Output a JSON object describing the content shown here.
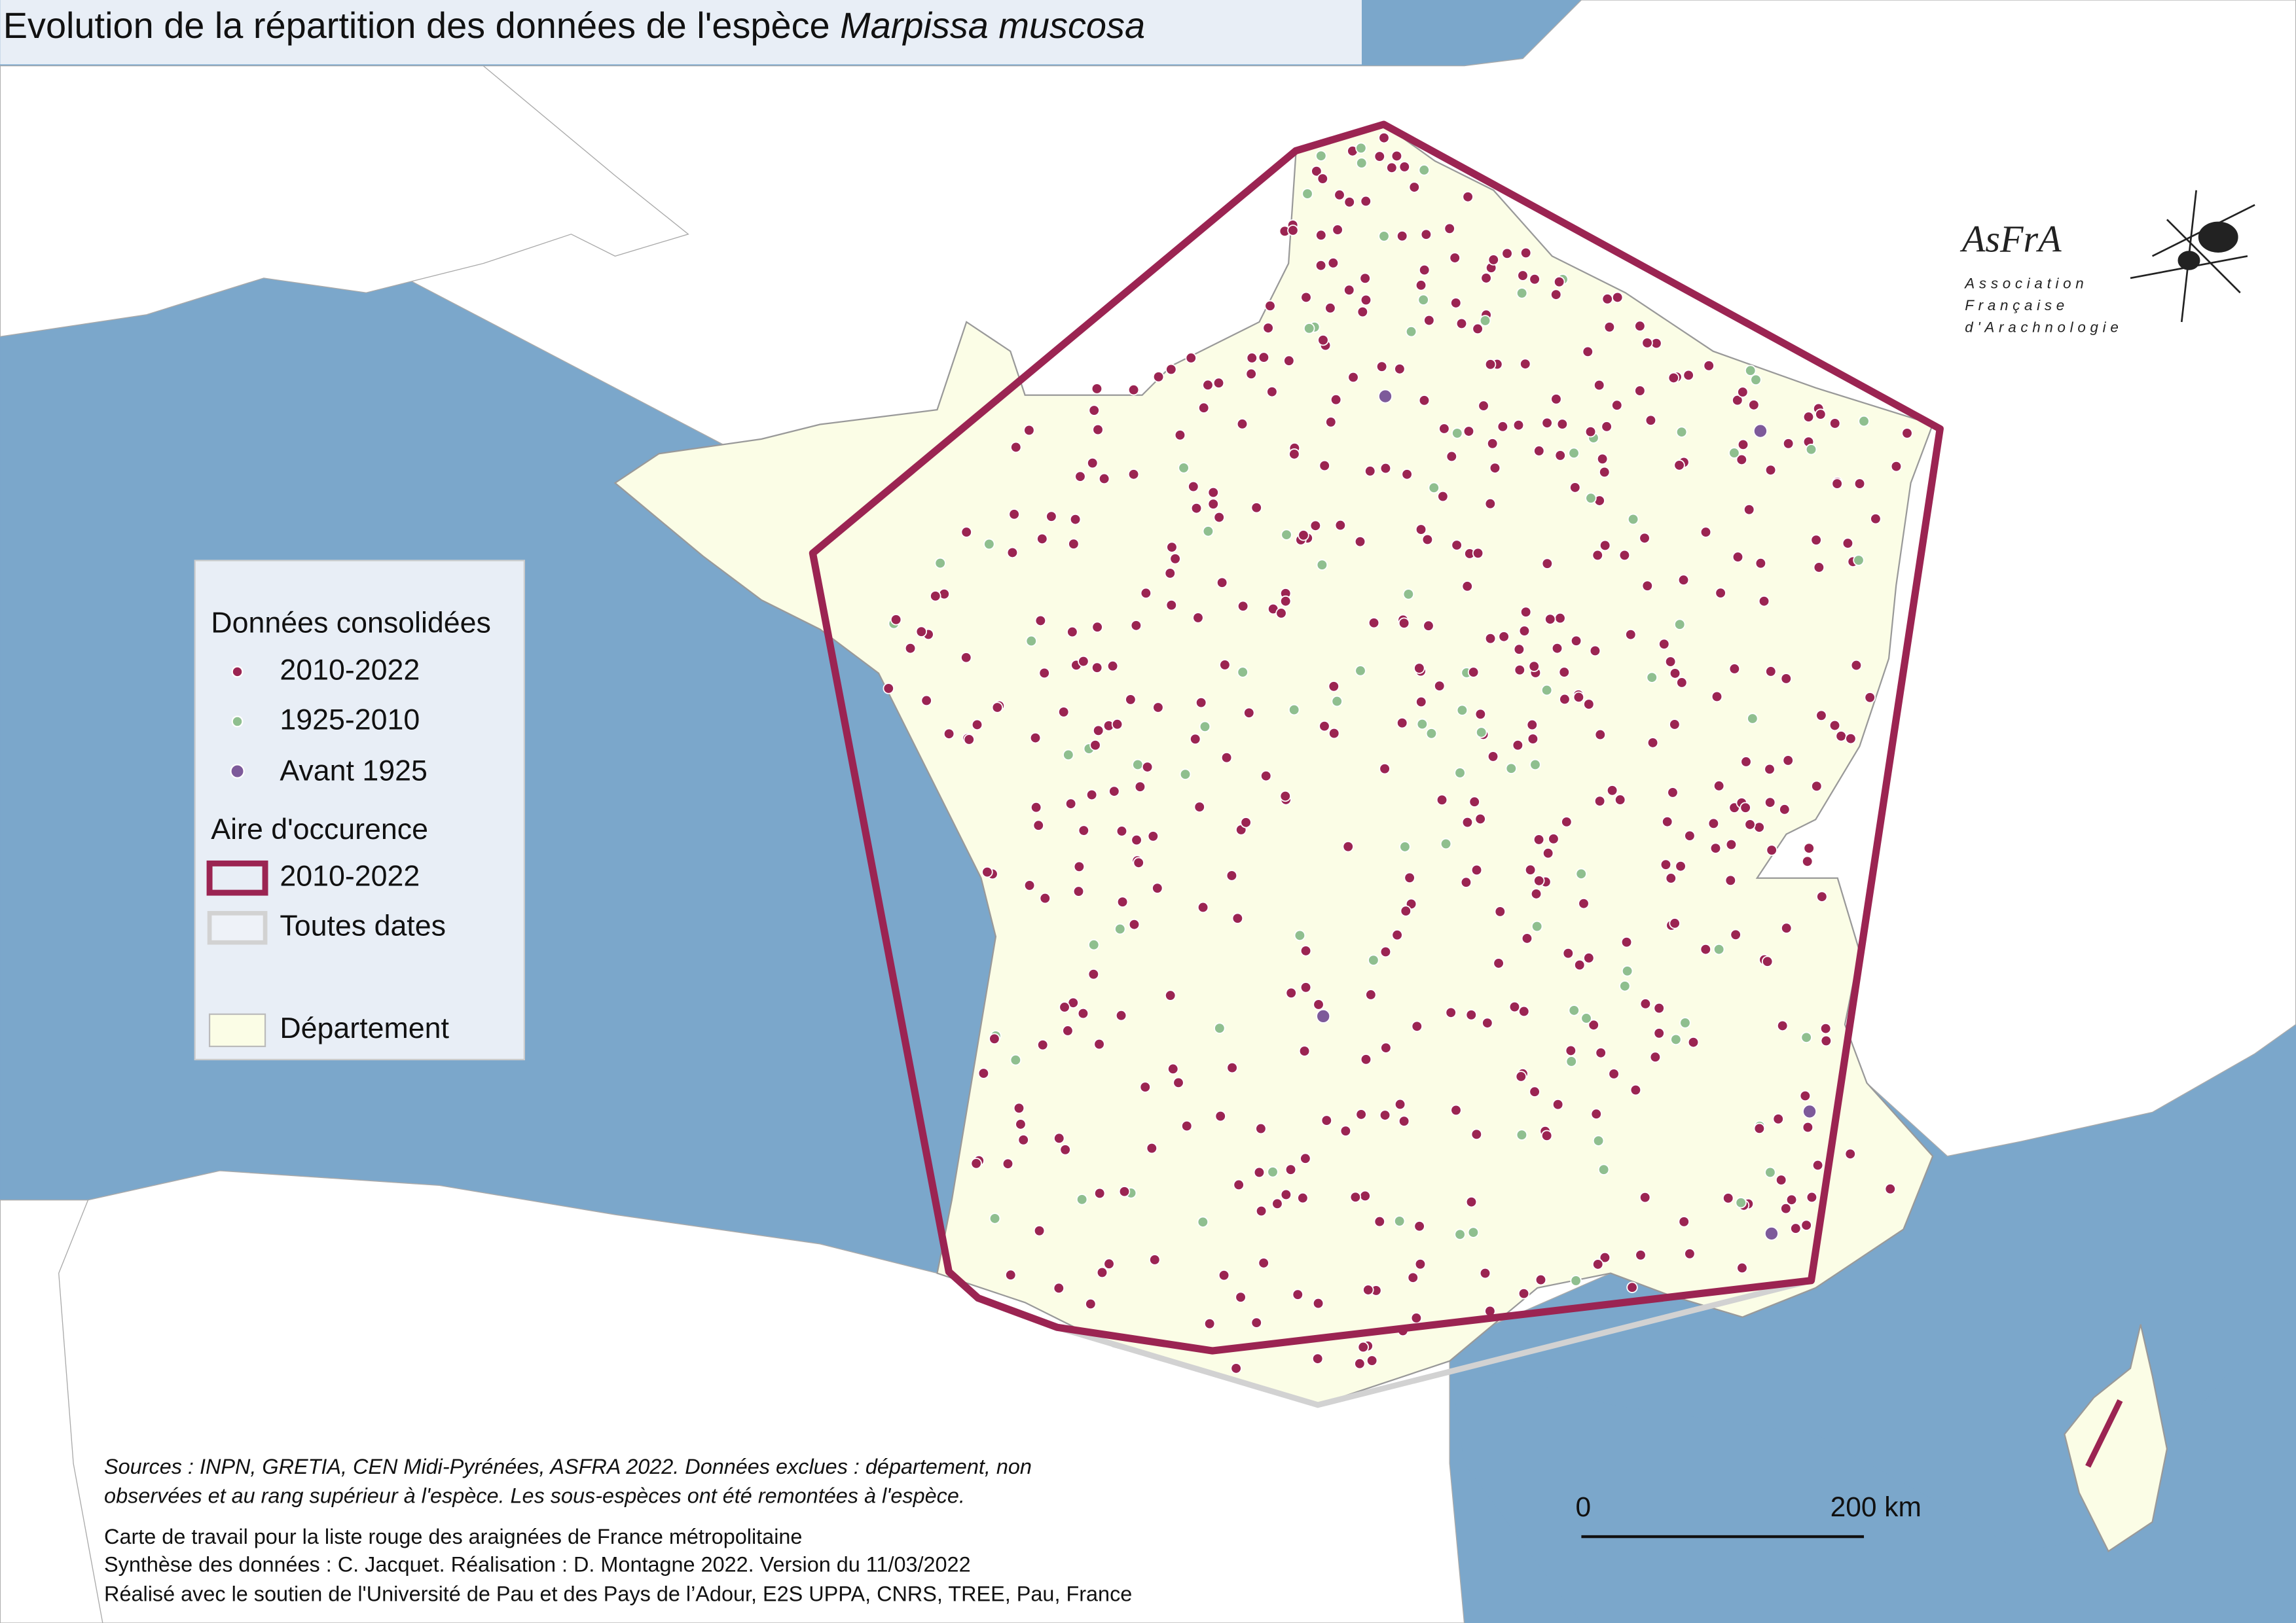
{
  "header": {
    "title": "Evolution de la répartition des données de l'espèce ",
    "title_species": "Marpissa muscosa"
  },
  "legend": {
    "consolidated_heading": "Données consolidées",
    "items": [
      "2010-2022",
      "1925-2010",
      "Avant 1925"
    ],
    "area_heading": "Aire d'occurence",
    "area_items": [
      "2010-2022",
      "Toutes dates"
    ],
    "department": "Département"
  },
  "scale_bar": {
    "start": "0",
    "end": "200 km"
  },
  "logo": {
    "name": "AsFrA",
    "subtitle": [
      "Association",
      "Française",
      "d'Arachnologie"
    ]
  },
  "notes": {
    "sources": [
      "Sources : INPN, GRETIA, CEN Midi-Pyrénées, ASFRA 2022. Données exclues : département, non",
      "observées et au rang supérieur à l'espèce. Les sous-espèces ont été remontées à l'espèce."
    ],
    "credits": [
      "Carte de travail pour la liste rouge des araignées de France métropolitaine",
      "Synthèse des données : C. Jacquet. Réalisation : D. Montagne 2022. Version du 11/03/2022",
      "Réalisé avec le soutien de l'Université de Pau et des Pays de l’Adour, E2S UPPA, CNRS, TREE, Pau, France"
    ]
  }
}
